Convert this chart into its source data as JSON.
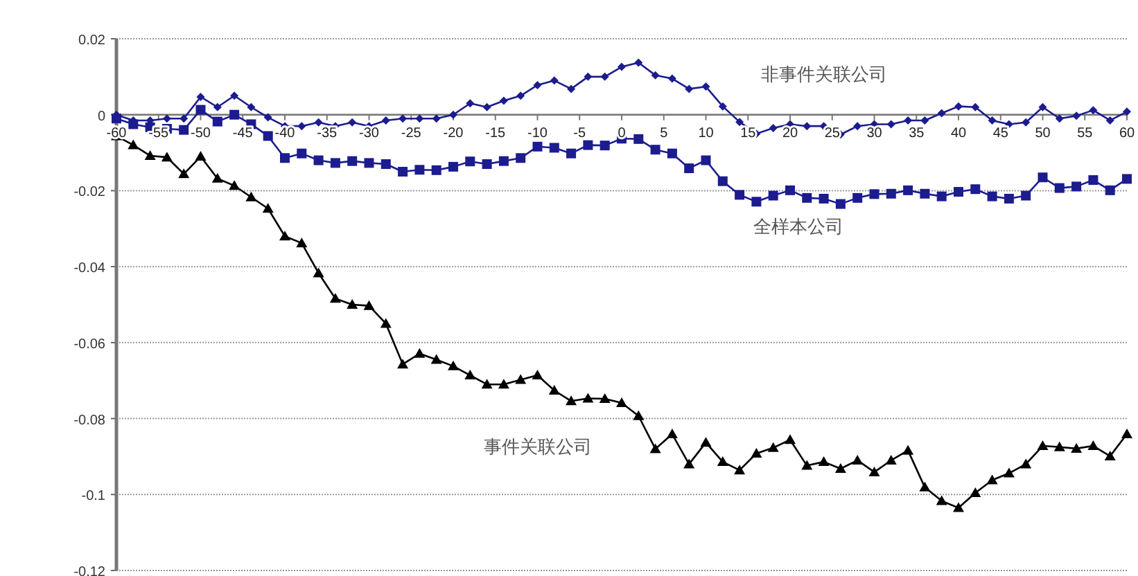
{
  "chart_data": {
    "type": "line",
    "x": [
      -60,
      -58,
      -56,
      -54,
      -52,
      -50,
      -48,
      -46,
      -44,
      -42,
      -40,
      -38,
      -36,
      -34,
      -32,
      -30,
      -28,
      -26,
      -24,
      -22,
      -20,
      -18,
      -16,
      -14,
      -12,
      -10,
      -8,
      -6,
      -4,
      -2,
      0,
      2,
      4,
      6,
      8,
      10,
      12,
      14,
      16,
      18,
      20,
      22,
      24,
      26,
      28,
      30,
      32,
      34,
      36,
      38,
      40,
      42,
      44,
      46,
      48,
      50,
      52,
      54,
      56,
      58,
      60
    ],
    "series": [
      {
        "name": "非事件关联公司",
        "color": "#1c1c8f",
        "marker": "diamond",
        "values": [
          0.0,
          -0.0015,
          -0.0015,
          -0.001,
          -0.001,
          0.0047,
          0.002,
          0.005,
          0.002,
          -0.0007,
          -0.003,
          -0.003,
          -0.002,
          -0.003,
          -0.002,
          -0.003,
          -0.0015,
          -0.001,
          -0.001,
          -0.001,
          0.0,
          0.003,
          0.002,
          0.0037,
          0.005,
          0.0078,
          0.009,
          0.0068,
          0.01,
          0.01,
          0.0126,
          0.0137,
          0.0104,
          0.0095,
          0.0068,
          0.0074,
          0.0022,
          -0.0019,
          -0.005,
          -0.0035,
          -0.0025,
          -0.003,
          -0.003,
          -0.0052,
          -0.003,
          -0.0025,
          -0.0025,
          -0.0015,
          -0.0015,
          0.0004,
          0.0022,
          0.002,
          -0.0015,
          -0.0025,
          -0.002,
          0.002,
          -0.001,
          -0.0003,
          0.0012,
          -0.0015,
          0.0008
        ]
      },
      {
        "name": "全样本公司",
        "color": "#1c1c8f",
        "marker": "square",
        "values": [
          -0.001,
          -0.0025,
          -0.0033,
          -0.0037,
          -0.004,
          0.0013,
          -0.0018,
          0.0,
          -0.0025,
          -0.0056,
          -0.0114,
          -0.0102,
          -0.012,
          -0.0127,
          -0.0122,
          -0.0127,
          -0.013,
          -0.015,
          -0.0145,
          -0.0146,
          -0.0137,
          -0.0123,
          -0.013,
          -0.0122,
          -0.0114,
          -0.0084,
          -0.0087,
          -0.0102,
          -0.008,
          -0.0081,
          -0.0063,
          -0.0064,
          -0.0092,
          -0.0102,
          -0.0141,
          -0.012,
          -0.0175,
          -0.0211,
          -0.0229,
          -0.0213,
          -0.0199,
          -0.0219,
          -0.0221,
          -0.0235,
          -0.0219,
          -0.0209,
          -0.0208,
          -0.0199,
          -0.0208,
          -0.0215,
          -0.0203,
          -0.0196,
          -0.0215,
          -0.0221,
          -0.0213,
          -0.0165,
          -0.0193,
          -0.0189,
          -0.0172,
          -0.0199,
          -0.0169
        ]
      },
      {
        "name": "事件关联公司",
        "color": "#000000",
        "marker": "triangle",
        "values": [
          -0.0056,
          -0.008,
          -0.0108,
          -0.0112,
          -0.0156,
          -0.011,
          -0.0168,
          -0.0187,
          -0.0217,
          -0.0247,
          -0.032,
          -0.0338,
          -0.0417,
          -0.0484,
          -0.05,
          -0.0503,
          -0.055,
          -0.0657,
          -0.0629,
          -0.0645,
          -0.0662,
          -0.0686,
          -0.071,
          -0.071,
          -0.0698,
          -0.0686,
          -0.0726,
          -0.0754,
          -0.0747,
          -0.0748,
          -0.0759,
          -0.0793,
          -0.088,
          -0.0841,
          -0.092,
          -0.0863,
          -0.0914,
          -0.0936,
          -0.0892,
          -0.0877,
          -0.0856,
          -0.0924,
          -0.0914,
          -0.0932,
          -0.091,
          -0.0941,
          -0.091,
          -0.0884,
          -0.0981,
          -0.1017,
          -0.1035,
          -0.0996,
          -0.0962,
          -0.0944,
          -0.092,
          -0.0872,
          -0.0875,
          -0.0879,
          -0.0872,
          -0.0899,
          -0.0841
        ]
      }
    ],
    "xlim": [
      -60,
      60
    ],
    "xticks": [
      -60,
      -55,
      -50,
      -45,
      -40,
      -35,
      -30,
      -25,
      -20,
      -15,
      -10,
      -5,
      0,
      5,
      10,
      15,
      20,
      25,
      30,
      35,
      40,
      45,
      50,
      55,
      60
    ],
    "ylim": [
      -0.12,
      0.02
    ],
    "yticks": [
      -0.12,
      -0.1,
      -0.08,
      -0.06,
      -0.04,
      -0.02,
      0,
      0.02
    ],
    "grid": "y",
    "line_style": "solid",
    "legend": false
  }
}
